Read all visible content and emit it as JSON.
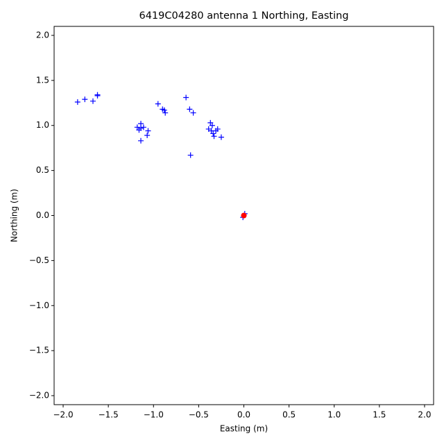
{
  "chart_data": {
    "type": "scatter",
    "title": "6419C04280 antenna 1 Northing, Easting",
    "x_label": "Easting (m)",
    "y_label": "Northing (m)",
    "xlim": [
      -2.1,
      2.1
    ],
    "ylim": [
      -2.1,
      2.1
    ],
    "xticks": [
      {
        "value": -2,
        "label": "−2.0"
      },
      {
        "value": -1.5,
        "label": "−1.5"
      },
      {
        "value": -1,
        "label": "−1.0"
      },
      {
        "value": -0.5,
        "label": "−0.5"
      },
      {
        "value": 0,
        "label": "0.0"
      },
      {
        "value": 0.5,
        "label": "0.5"
      },
      {
        "value": 1,
        "label": "1.0"
      },
      {
        "value": 1.5,
        "label": "1.5"
      },
      {
        "value": 2,
        "label": "2.0"
      }
    ],
    "yticks": [
      {
        "value": -2,
        "label": "−2.0"
      },
      {
        "value": -1.5,
        "label": "−1.5"
      },
      {
        "value": -1,
        "label": "−1.0"
      },
      {
        "value": -0.5,
        "label": "−0.5"
      },
      {
        "value": 0,
        "label": "0.0"
      },
      {
        "value": 0.5,
        "label": "0.5"
      },
      {
        "value": 1,
        "label": "1.0"
      },
      {
        "value": 1.5,
        "label": "1.5"
      },
      {
        "value": 2,
        "label": "2.0"
      }
    ],
    "series": [
      {
        "color": "#0000ff",
        "marker": "plus",
        "x": [
          -1.84,
          -1.76,
          -1.67,
          -1.62,
          -1.62,
          -0.95,
          -0.64,
          -0.9,
          -0.87,
          -0.88,
          -0.6,
          -0.56,
          -1.18,
          -1.16,
          -1.14,
          -1.14,
          -1.11,
          -1.06,
          -1.07,
          -1.14,
          -0.37,
          -0.35,
          -0.39,
          -0.36,
          -0.34,
          -0.33,
          -0.29,
          -0.31,
          -0.25,
          -0.59,
          0,
          0.01,
          -0.01
        ],
        "values": [
          1.26,
          1.29,
          1.27,
          1.34,
          1.33,
          1.24,
          1.31,
          1.18,
          1.14,
          1.17,
          1.18,
          1.14,
          0.98,
          0.95,
          1.02,
          0.97,
          0.98,
          0.94,
          0.89,
          0.83,
          1.03,
          1.0,
          0.96,
          0.94,
          0.91,
          0.88,
          0.96,
          0.94,
          0.87,
          0.67,
          0,
          0.02,
          -0.02
        ]
      },
      {
        "color": "#ff0000",
        "marker": "circle",
        "x": [
          0
        ],
        "values": [
          0
        ]
      }
    ]
  }
}
